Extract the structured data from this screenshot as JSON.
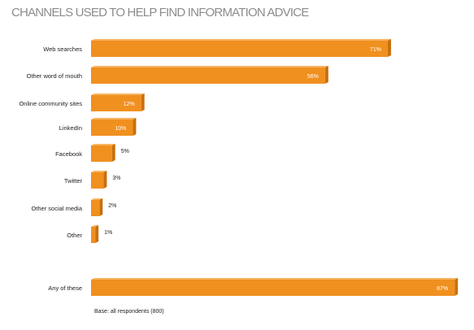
{
  "chart_data": {
    "type": "bar",
    "orientation": "horizontal",
    "title": "CHANNELS USED TO HELP FIND INFORMATION ADVICE",
    "categories": [
      "Web searches",
      "Other word of mouth",
      "Online community sites",
      "LinkedIn",
      "Facebook",
      "Twitter",
      "Other social media",
      "Other",
      "Any of these"
    ],
    "values": [
      71,
      56,
      12,
      10,
      5,
      3,
      2,
      1,
      87
    ],
    "value_labels": [
      "71%",
      "56%",
      "12%",
      "10%",
      "5%",
      "3%",
      "2%",
      "1%",
      "87%"
    ],
    "unit": "%",
    "xlim": [
      0,
      100
    ],
    "grid": false,
    "legend": "none",
    "bar_color": "#f0901f",
    "bar_side_color": "#c96f0c",
    "bar_top_color": "#f7b562"
  },
  "footnote": "Base: all respondents (800)"
}
